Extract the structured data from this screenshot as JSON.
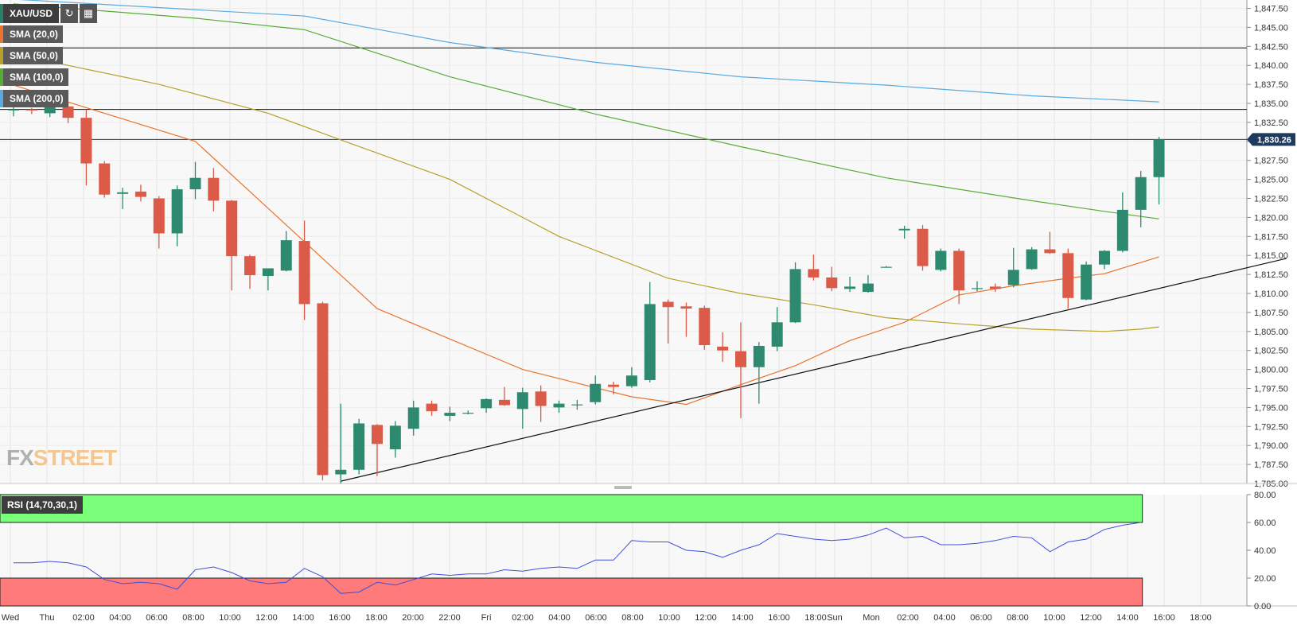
{
  "symbol": "XAU/USD",
  "toolbar": {
    "refresh_icon": "refresh-icon",
    "calendar_icon": "calendar-icon"
  },
  "indicators": [
    {
      "label": "SMA (20,0)",
      "color": "#e8742d"
    },
    {
      "label": "SMA (50,0)",
      "color": "#b7a02a"
    },
    {
      "label": "SMA (100,0)",
      "color": "#5aaa36"
    },
    {
      "label": "SMA (200,0)",
      "color": "#5aaae0"
    }
  ],
  "rsi_label": "RSI (14,70,30,1)",
  "watermark": {
    "part1": "FX",
    "part2": "STREET"
  },
  "current_price_label": "1,830.26",
  "colors": {
    "bull": "#2e8a6e",
    "bear": "#dc5a48",
    "rsi_line": "#3f50d8",
    "overbought": "#7aff7a",
    "oversold": "#ff7a7a",
    "price_tag": "#1e3a5f"
  },
  "chart_data": {
    "type": "candlestick",
    "title": "",
    "y_axis": {
      "ylim": [
        1785.0,
        1848.6
      ],
      "ticks": [
        "1,785.00",
        "1,787.50",
        "1,790.00",
        "1,792.50",
        "1,795.00",
        "1,797.50",
        "1,800.00",
        "1,802.50",
        "1,805.00",
        "1,807.50",
        "1,810.00",
        "1,812.50",
        "1,815.00",
        "1,817.50",
        "1,820.00",
        "1,822.50",
        "1,825.00",
        "1,827.50",
        "1,830.00",
        "1,832.50",
        "1,835.00",
        "1,837.50",
        "1,840.00",
        "1,842.50",
        "1,845.00",
        "1,847.50"
      ]
    },
    "x_axis": {
      "ticks": [
        "Wed",
        "Thu",
        "02:00",
        "04:00",
        "06:00",
        "08:00",
        "10:00",
        "12:00",
        "14:00",
        "16:00",
        "18:00",
        "20:00",
        "22:00",
        "Fri",
        "02:00",
        "04:00",
        "06:00",
        "08:00",
        "10:00",
        "12:00",
        "14:00",
        "16:00",
        "18:00",
        "Sun",
        "Mon",
        "02:00",
        "04:00",
        "06:00",
        "08:00",
        "10:00",
        "12:00",
        "14:00",
        "16:00",
        "18:00"
      ]
    },
    "candles": [
      {
        "o": 1834.2,
        "h": 1834.6,
        "l": 1833.3,
        "c": 1834.2
      },
      {
        "o": 1834.2,
        "h": 1834.4,
        "l": 1833.6,
        "c": 1834.1
      },
      {
        "o": 1833.7,
        "h": 1835.3,
        "l": 1833.2,
        "c": 1834.6
      },
      {
        "o": 1834.6,
        "h": 1835.1,
        "l": 1832.4,
        "c": 1833.1
      },
      {
        "o": 1833.1,
        "h": 1834.2,
        "l": 1824.2,
        "c": 1827.1
      },
      {
        "o": 1827.1,
        "h": 1827.4,
        "l": 1822.6,
        "c": 1823.0
      },
      {
        "o": 1823.1,
        "h": 1823.9,
        "l": 1821.1,
        "c": 1823.3
      },
      {
        "o": 1823.4,
        "h": 1824.3,
        "l": 1822.1,
        "c": 1822.7
      },
      {
        "o": 1822.5,
        "h": 1822.8,
        "l": 1815.9,
        "c": 1817.9
      },
      {
        "o": 1817.9,
        "h": 1824.2,
        "l": 1816.2,
        "c": 1823.7
      },
      {
        "o": 1823.7,
        "h": 1827.3,
        "l": 1822.4,
        "c": 1825.2
      },
      {
        "o": 1825.2,
        "h": 1826.5,
        "l": 1820.8,
        "c": 1822.2
      },
      {
        "o": 1822.2,
        "h": 1822.3,
        "l": 1810.4,
        "c": 1814.9
      },
      {
        "o": 1814.9,
        "h": 1815.1,
        "l": 1810.6,
        "c": 1812.4
      },
      {
        "o": 1812.3,
        "h": 1813.2,
        "l": 1810.4,
        "c": 1813.3
      },
      {
        "o": 1813.0,
        "h": 1818.2,
        "l": 1812.9,
        "c": 1817.0
      },
      {
        "o": 1816.9,
        "h": 1819.6,
        "l": 1806.5,
        "c": 1808.6
      },
      {
        "o": 1808.7,
        "h": 1808.9,
        "l": 1785.4,
        "c": 1786.1
      },
      {
        "o": 1786.2,
        "h": 1795.5,
        "l": 1785.0,
        "c": 1786.8
      },
      {
        "o": 1786.8,
        "h": 1793.5,
        "l": 1786.2,
        "c": 1792.9
      },
      {
        "o": 1792.7,
        "h": 1792.8,
        "l": 1786.0,
        "c": 1790.2
      },
      {
        "o": 1789.5,
        "h": 1793.2,
        "l": 1788.4,
        "c": 1792.6
      },
      {
        "o": 1792.2,
        "h": 1795.9,
        "l": 1791.3,
        "c": 1795.0
      },
      {
        "o": 1795.5,
        "h": 1795.9,
        "l": 1793.9,
        "c": 1794.5
      },
      {
        "o": 1793.9,
        "h": 1795.1,
        "l": 1793.2,
        "c": 1794.3
      },
      {
        "o": 1794.2,
        "h": 1794.6,
        "l": 1794.1,
        "c": 1794.3
      },
      {
        "o": 1794.9,
        "h": 1796.2,
        "l": 1794.3,
        "c": 1796.1
      },
      {
        "o": 1796.0,
        "h": 1797.7,
        "l": 1795.2,
        "c": 1795.3
      },
      {
        "o": 1794.8,
        "h": 1797.6,
        "l": 1792.2,
        "c": 1797.0
      },
      {
        "o": 1797.1,
        "h": 1797.9,
        "l": 1793.1,
        "c": 1795.2
      },
      {
        "o": 1795.0,
        "h": 1795.9,
        "l": 1794.3,
        "c": 1795.5
      },
      {
        "o": 1795.4,
        "h": 1796.0,
        "l": 1794.7,
        "c": 1795.4
      },
      {
        "o": 1795.7,
        "h": 1799.2,
        "l": 1795.4,
        "c": 1798.1
      },
      {
        "o": 1798.0,
        "h": 1798.4,
        "l": 1796.7,
        "c": 1797.7
      },
      {
        "o": 1797.8,
        "h": 1800.3,
        "l": 1797.6,
        "c": 1799.2
      },
      {
        "o": 1798.6,
        "h": 1811.5,
        "l": 1798.3,
        "c": 1808.6
      },
      {
        "o": 1808.9,
        "h": 1809.2,
        "l": 1803.4,
        "c": 1808.2
      },
      {
        "o": 1808.3,
        "h": 1808.8,
        "l": 1804.3,
        "c": 1808.0
      },
      {
        "o": 1808.1,
        "h": 1808.4,
        "l": 1802.6,
        "c": 1803.2
      },
      {
        "o": 1803.0,
        "h": 1804.9,
        "l": 1801.0,
        "c": 1802.5
      },
      {
        "o": 1802.4,
        "h": 1806.2,
        "l": 1793.6,
        "c": 1800.3
      },
      {
        "o": 1800.3,
        "h": 1803.6,
        "l": 1795.5,
        "c": 1803.1
      },
      {
        "o": 1803.0,
        "h": 1808.2,
        "l": 1802.4,
        "c": 1806.2
      },
      {
        "o": 1806.2,
        "h": 1814.1,
        "l": 1806.1,
        "c": 1813.2
      },
      {
        "o": 1813.2,
        "h": 1815.1,
        "l": 1811.7,
        "c": 1812.1
      },
      {
        "o": 1812.1,
        "h": 1813.5,
        "l": 1810.3,
        "c": 1810.7
      },
      {
        "o": 1810.6,
        "h": 1812.2,
        "l": 1810.2,
        "c": 1810.9
      },
      {
        "o": 1810.2,
        "h": 1812.4,
        "l": 1810.1,
        "c": 1811.3
      },
      {
        "o": 1813.5,
        "h": 1813.6,
        "l": 1813.4,
        "c": 1813.5
      },
      {
        "o": 1818.3,
        "h": 1818.9,
        "l": 1817.2,
        "c": 1818.5
      },
      {
        "o": 1818.5,
        "h": 1819.0,
        "l": 1813.0,
        "c": 1813.6
      },
      {
        "o": 1813.1,
        "h": 1815.9,
        "l": 1812.9,
        "c": 1815.6
      },
      {
        "o": 1815.6,
        "h": 1815.9,
        "l": 1808.6,
        "c": 1810.4
      },
      {
        "o": 1810.6,
        "h": 1811.6,
        "l": 1810.3,
        "c": 1810.7
      },
      {
        "o": 1810.9,
        "h": 1811.3,
        "l": 1810.2,
        "c": 1810.6
      },
      {
        "o": 1811.1,
        "h": 1816.0,
        "l": 1810.8,
        "c": 1813.1
      },
      {
        "o": 1813.2,
        "h": 1816.1,
        "l": 1813.1,
        "c": 1815.8
      },
      {
        "o": 1815.8,
        "h": 1818.1,
        "l": 1815.2,
        "c": 1815.3
      },
      {
        "o": 1815.3,
        "h": 1815.9,
        "l": 1808.0,
        "c": 1809.4
      },
      {
        "o": 1809.2,
        "h": 1814.2,
        "l": 1809.1,
        "c": 1813.8
      },
      {
        "o": 1813.8,
        "h": 1815.7,
        "l": 1813.2,
        "c": 1815.6
      },
      {
        "o": 1815.6,
        "h": 1823.3,
        "l": 1815.4,
        "c": 1821.0
      },
      {
        "o": 1821.0,
        "h": 1826.1,
        "l": 1818.7,
        "c": 1825.3
      },
      {
        "o": 1825.3,
        "h": 1830.6,
        "l": 1821.7,
        "c": 1830.26
      }
    ],
    "sma": {
      "SMA (20,0)": [
        [
          0,
          1837.4
        ],
        [
          10,
          1830.0
        ],
        [
          20,
          1808.0
        ],
        [
          28,
          1800.0
        ],
        [
          34,
          1796.4
        ],
        [
          37,
          1795.4
        ],
        [
          40,
          1798.0
        ],
        [
          43,
          1800.5
        ],
        [
          46,
          1803.8
        ],
        [
          49,
          1806.2
        ],
        [
          52,
          1809.8
        ],
        [
          55,
          1811.0
        ],
        [
          58,
          1812.0
        ],
        [
          60,
          1812.6
        ],
        [
          63,
          1814.8
        ]
      ],
      "SMA (50,0)": [
        [
          0,
          1841.5
        ],
        [
          8,
          1837.5
        ],
        [
          14,
          1833.7
        ],
        [
          18,
          1830.2
        ],
        [
          24,
          1825.0
        ],
        [
          30,
          1817.5
        ],
        [
          36,
          1812.0
        ],
        [
          40,
          1810.0
        ],
        [
          44,
          1808.5
        ],
        [
          48,
          1806.8
        ],
        [
          52,
          1806.0
        ],
        [
          56,
          1805.3
        ],
        [
          60,
          1805.0
        ],
        [
          62,
          1805.3
        ],
        [
          63,
          1805.6
        ]
      ],
      "SMA (100,0)": [
        [
          0,
          1848.1
        ],
        [
          10,
          1846.2
        ],
        [
          16,
          1844.7
        ],
        [
          24,
          1838.5
        ],
        [
          32,
          1833.6
        ],
        [
          40,
          1829.3
        ],
        [
          48,
          1825.2
        ],
        [
          56,
          1822.2
        ],
        [
          60,
          1820.8
        ],
        [
          63,
          1819.8
        ]
      ],
      "SMA (200,0)": [
        [
          0,
          1848.7
        ],
        [
          16,
          1846.5
        ],
        [
          24,
          1843.0
        ],
        [
          32,
          1840.4
        ],
        [
          40,
          1838.5
        ],
        [
          48,
          1837.4
        ],
        [
          56,
          1836.0
        ],
        [
          63,
          1835.2
        ]
      ]
    },
    "horizontal_lines": [
      1842.3,
      1834.2,
      1830.26
    ],
    "trendline": [
      [
        18,
        1785.3
      ],
      [
        70,
        1814.6
      ]
    ],
    "rsi": {
      "ylim": [
        10,
        90
      ],
      "ticks": [
        "0.00",
        "20.00",
        "40.00",
        "60.00",
        "80.00"
      ],
      "overbought": 70,
      "oversold": 30,
      "values": [
        41,
        41,
        42,
        41,
        38,
        29,
        26,
        27,
        26,
        22,
        36,
        38,
        34,
        28,
        26,
        27,
        37,
        31,
        19,
        20,
        27,
        25,
        29,
        33,
        32,
        33,
        33,
        36,
        35,
        37,
        38,
        37,
        43,
        43,
        57,
        56,
        56,
        50,
        49,
        45,
        50,
        54,
        62,
        60,
        58,
        57,
        58,
        61,
        66,
        59,
        60,
        54,
        54,
        55,
        57,
        60,
        59,
        49,
        56,
        58,
        65,
        68,
        70
      ]
    }
  }
}
